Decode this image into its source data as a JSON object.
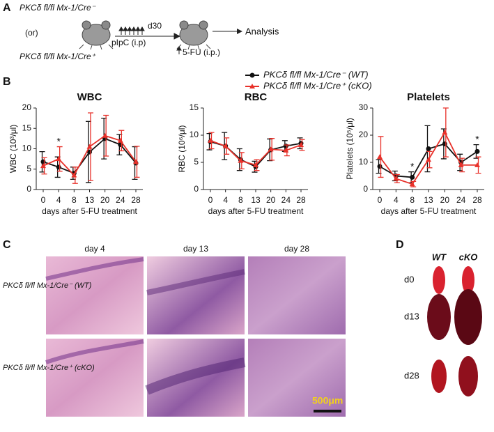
{
  "panels": {
    "A": {
      "label": "A",
      "genotype_wt": "PKCδ fl/fl Mx-1/Cre⁻",
      "or": "(or)",
      "genotype_cko": "PKCδ fl/fl Mx-1/Cre⁺",
      "pipc": "pIpC (i.p)",
      "day": "d30",
      "analysis": "Analysis",
      "fu": "5-FU (i.p.)"
    },
    "B": {
      "label": "B"
    },
    "C": {
      "label": "C",
      "columns": [
        "day 4",
        "day 13",
        "day 28"
      ],
      "rows": [
        "PKCδ fl/fl Mx-1/Cre⁻ (WT)",
        "PKCδ fl/fl Mx-1/Cre⁺ (cKO)"
      ],
      "scale_bar": "500μm"
    },
    "D": {
      "label": "D",
      "columns": [
        "WT",
        "cKO"
      ],
      "rows": [
        "d0",
        "d13",
        "d28"
      ]
    }
  },
  "chart_data": [
    {
      "type": "line",
      "title": "WBC",
      "x_label": "days after 5-FU treatment",
      "y_label": "WBC (10³/μl)",
      "categories": [
        "0",
        "4",
        "8",
        "13",
        "20",
        "24",
        "28"
      ],
      "ylim": [
        0,
        20
      ],
      "yticks": [
        0,
        5,
        10,
        15,
        20
      ],
      "series": [
        {
          "name": "PKCδ fl/fl Mx-1/Cre⁻ (WT)",
          "color": "#111111",
          "marker": "circle",
          "values": [
            6.8,
            5.5,
            4.0,
            9.2,
            12.5,
            11.0,
            6.5
          ],
          "errors": [
            2.5,
            2.5,
            1.5,
            7.5,
            5.0,
            2.5,
            4.0
          ]
        },
        {
          "name": "PKCδ fl/fl Mx-1/Cre⁺ (cKO)",
          "color": "#e8312a",
          "marker": "triangle",
          "values": [
            5.8,
            7.5,
            3.5,
            10.5,
            13.2,
            12.0,
            6.8
          ],
          "errors": [
            2.0,
            3.0,
            2.0,
            8.3,
            5.0,
            2.5,
            3.8
          ]
        }
      ],
      "annotations": [
        {
          "text": "*",
          "color": "#e8312a"
        }
      ]
    },
    {
      "type": "line",
      "title": "RBC",
      "x_label": "days after 5-FU treatment",
      "y_label": "RBC (10⁶/μl)",
      "categories": [
        "0",
        "4",
        "8",
        "13",
        "20",
        "24",
        "28"
      ],
      "ylim": [
        0,
        15
      ],
      "yticks": [
        0,
        5,
        10,
        15
      ],
      "series": [
        {
          "name": "PKCδ fl/fl Mx-1/Cre⁻ (WT)",
          "color": "#111111",
          "marker": "circle",
          "values": [
            8.8,
            8.0,
            5.5,
            4.2,
            7.3,
            8.0,
            8.5
          ],
          "errors": [
            1.5,
            2.5,
            2.0,
            1.0,
            2.0,
            1.0,
            1.0
          ]
        },
        {
          "name": "PKCδ fl/fl Mx-1/Cre⁺ (cKO)",
          "color": "#e8312a",
          "marker": "triangle",
          "values": [
            9.0,
            8.0,
            5.3,
            4.5,
            7.4,
            7.2,
            8.2
          ],
          "errors": [
            1.5,
            1.5,
            1.5,
            1.0,
            2.0,
            1.0,
            1.0
          ]
        }
      ],
      "annotations": []
    },
    {
      "type": "line",
      "title": "Platelets",
      "x_label": "days after 5-FU treatment",
      "y_label": "Platelets (10⁵/μl)",
      "categories": [
        "0",
        "4",
        "8",
        "13",
        "20",
        "24",
        "28"
      ],
      "ylim": [
        0,
        30
      ],
      "yticks": [
        0,
        10,
        20,
        30
      ],
      "series": [
        {
          "name": "PKCδ fl/fl Mx-1/Cre⁻ (WT)",
          "color": "#111111",
          "marker": "circle",
          "values": [
            8.5,
            5.0,
            4.5,
            15.0,
            16.8,
            10.0,
            14.0
          ],
          "errors": [
            2.5,
            1.8,
            2.0,
            8.5,
            5.5,
            3.0,
            2.5
          ]
        },
        {
          "name": "PKCδ fl/fl Mx-1/Cre⁺ (cKO)",
          "color": "#e8312a",
          "marker": "triangle",
          "values": [
            12.0,
            4.0,
            2.0,
            11.0,
            21.0,
            9.0,
            9.0
          ],
          "errors": [
            7.5,
            1.5,
            1.0,
            3.0,
            9.0,
            2.5,
            3.0
          ]
        }
      ],
      "annotations": [
        {
          "text": "*",
          "color": "#111111"
        },
        {
          "text": "*",
          "color": "#111111"
        }
      ]
    }
  ]
}
